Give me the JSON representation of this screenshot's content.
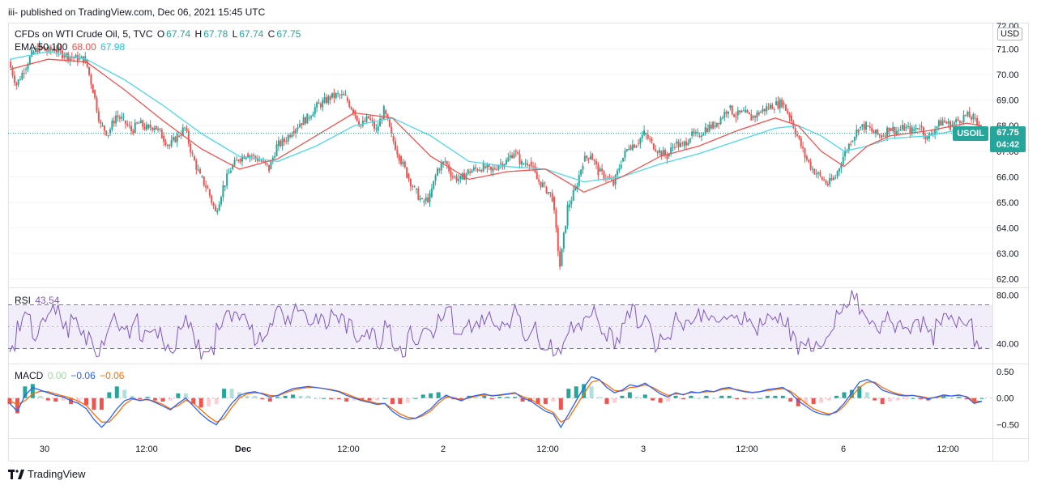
{
  "header": {
    "published": "iii- published on TradingView.com, Dec 06, 2021 15:45 UTC"
  },
  "legend": {
    "symbol": "CFDs on WTI Crude Oil, 5, TVC",
    "o_label": "O",
    "o_value": "67.74",
    "h_label": "H",
    "h_value": "67.78",
    "l_label": "L",
    "l_value": "67.74",
    "c_label": "C",
    "c_value": "67.75",
    "ema_label": "EMA 50 100",
    "ema_fast": "68.00",
    "ema_slow": "67.98",
    "rsi_label": "RSI",
    "rsi_value": "43.54",
    "macd_label": "MACD",
    "macd_hist": "0.00",
    "macd_line": "−0.06",
    "macd_signal": "−0.06"
  },
  "price_scale": {
    "currency": "USD",
    "ticks": [
      "71.00",
      "70.00",
      "69.00",
      "68.00",
      "67.00",
      "66.00",
      "65.00",
      "64.00",
      "63.00",
      "62.00"
    ],
    "top_partial": "72.00"
  },
  "rsi_scale": {
    "ticks": [
      "80.00",
      "40.00"
    ]
  },
  "macd_scale": {
    "ticks": [
      "0.50",
      "0.00",
      "−0.50"
    ]
  },
  "time_axis": {
    "labels": [
      "30",
      "12:00",
      "Dec",
      "12:00",
      "2",
      "12:00",
      "3",
      "12:00",
      "6",
      "12:00"
    ]
  },
  "last_price": {
    "symbol": "USOIL",
    "value": "67.75",
    "countdown": "04:42"
  },
  "footer": {
    "brand": "TradingView"
  },
  "colors": {
    "up": "#26a69a",
    "down": "#ef5350",
    "ema_fast": "#ef5350",
    "ema_slow": "#4dd8e8",
    "rsi": "#7e57c2",
    "macd": "#2962ff",
    "signal": "#ff6d00"
  },
  "chart_data": [
    {
      "type": "candlestick",
      "title": "CFDs on WTI Crude Oil, 5, TVC",
      "ylim": [
        61.7,
        72.0
      ],
      "x_labels": [
        "30",
        "12:00",
        "Dec",
        "12:00",
        "2",
        "12:00",
        "3",
        "12:00",
        "6",
        "12:00"
      ],
      "close_path": [
        [
          0,
          70.5
        ],
        [
          1,
          69.6
        ],
        [
          2,
          70.2
        ],
        [
          3,
          70.8
        ],
        [
          4,
          71.1
        ],
        [
          5,
          70.9
        ],
        [
          6,
          71.0
        ],
        [
          7,
          70.8
        ],
        [
          8,
          70.7
        ],
        [
          9,
          70.6
        ],
        [
          10,
          70.6
        ],
        [
          11,
          69.4
        ],
        [
          12,
          68.0
        ],
        [
          13,
          67.7
        ],
        [
          14,
          68.4
        ],
        [
          15,
          68.2
        ],
        [
          16,
          67.8
        ],
        [
          17,
          68.1
        ],
        [
          18,
          67.9
        ],
        [
          19,
          68.0
        ],
        [
          20,
          67.6
        ],
        [
          21,
          67.2
        ],
        [
          22,
          67.6
        ],
        [
          23,
          67.9
        ],
        [
          24,
          66.8
        ],
        [
          25,
          66.0
        ],
        [
          26,
          65.5
        ],
        [
          27,
          64.6
        ],
        [
          28,
          65.6
        ],
        [
          29,
          66.3
        ],
        [
          30,
          66.7
        ],
        [
          31,
          66.9
        ],
        [
          32,
          66.8
        ],
        [
          33,
          66.6
        ],
        [
          34,
          66.3
        ],
        [
          35,
          67.2
        ],
        [
          36,
          67.4
        ],
        [
          37,
          67.8
        ],
        [
          38,
          68.1
        ],
        [
          39,
          68.3
        ],
        [
          40,
          68.7
        ],
        [
          41,
          68.9
        ],
        [
          42,
          69.1
        ],
        [
          43,
          69.2
        ],
        [
          44,
          69.1
        ],
        [
          45,
          68.6
        ],
        [
          46,
          68.0
        ],
        [
          47,
          68.3
        ],
        [
          48,
          67.8
        ],
        [
          49,
          68.6
        ],
        [
          50,
          67.6
        ],
        [
          51,
          66.8
        ],
        [
          52,
          66.1
        ],
        [
          53,
          65.5
        ],
        [
          54,
          65.0
        ],
        [
          55,
          65.2
        ],
        [
          56,
          66.3
        ],
        [
          57,
          66.6
        ],
        [
          58,
          66.0
        ],
        [
          59,
          65.9
        ],
        [
          60,
          66.2
        ],
        [
          61,
          66.3
        ],
        [
          62,
          66.4
        ],
        [
          63,
          66.2
        ],
        [
          64,
          66.5
        ],
        [
          65,
          66.6
        ],
        [
          66,
          67.0
        ],
        [
          67,
          66.5
        ],
        [
          68,
          66.6
        ],
        [
          69,
          65.9
        ],
        [
          70,
          65.6
        ],
        [
          71,
          65.2
        ],
        [
          72,
          62.5
        ],
        [
          73,
          64.8
        ],
        [
          74,
          65.5
        ],
        [
          75,
          66.6
        ],
        [
          76,
          66.9
        ],
        [
          77,
          66.2
        ],
        [
          78,
          66.0
        ],
        [
          79,
          65.7
        ],
        [
          80,
          66.6
        ],
        [
          81,
          67.2
        ],
        [
          82,
          67.3
        ],
        [
          83,
          67.7
        ],
        [
          84,
          67.3
        ],
        [
          85,
          67.0
        ],
        [
          86,
          66.8
        ],
        [
          87,
          67.3
        ],
        [
          88,
          67.2
        ],
        [
          89,
          67.6
        ],
        [
          90,
          67.6
        ],
        [
          91,
          67.9
        ],
        [
          92,
          68.0
        ],
        [
          93,
          68.3
        ],
        [
          94,
          68.7
        ],
        [
          95,
          68.4
        ],
        [
          96,
          68.5
        ],
        [
          97,
          68.3
        ],
        [
          98,
          68.5
        ],
        [
          99,
          68.7
        ],
        [
          100,
          68.8
        ],
        [
          101,
          68.9
        ],
        [
          102,
          68.4
        ],
        [
          103,
          67.6
        ],
        [
          104,
          66.8
        ],
        [
          105,
          66.3
        ],
        [
          106,
          66.0
        ],
        [
          107,
          65.7
        ],
        [
          108,
          66.0
        ],
        [
          109,
          66.8
        ],
        [
          110,
          67.4
        ],
        [
          111,
          67.9
        ],
        [
          112,
          68.0
        ],
        [
          113,
          67.7
        ],
        [
          114,
          67.6
        ],
        [
          115,
          67.9
        ],
        [
          116,
          67.8
        ],
        [
          117,
          67.9
        ],
        [
          118,
          67.8
        ],
        [
          119,
          68.0
        ],
        [
          120,
          67.5
        ],
        [
          121,
          67.9
        ],
        [
          122,
          68.2
        ],
        [
          123,
          68.0
        ],
        [
          124,
          68.2
        ],
        [
          125,
          68.4
        ],
        [
          126,
          68.3
        ],
        [
          127,
          67.75
        ]
      ],
      "ema_fast": [
        [
          0,
          70.2
        ],
        [
          5,
          70.6
        ],
        [
          10,
          70.5
        ],
        [
          15,
          69.4
        ],
        [
          20,
          68.2
        ],
        [
          25,
          67.1
        ],
        [
          30,
          66.3
        ],
        [
          35,
          66.7
        ],
        [
          40,
          67.6
        ],
        [
          45,
          68.5
        ],
        [
          50,
          68.3
        ],
        [
          55,
          66.8
        ],
        [
          60,
          65.9
        ],
        [
          65,
          66.2
        ],
        [
          70,
          66.3
        ],
        [
          75,
          65.4
        ],
        [
          80,
          66.0
        ],
        [
          85,
          66.8
        ],
        [
          90,
          67.2
        ],
        [
          95,
          67.8
        ],
        [
          100,
          68.3
        ],
        [
          103,
          68.0
        ],
        [
          106,
          67.0
        ],
        [
          109,
          66.4
        ],
        [
          112,
          67.2
        ],
        [
          115,
          67.6
        ],
        [
          120,
          67.8
        ],
        [
          125,
          68.1
        ],
        [
          127,
          68.0
        ]
      ],
      "ema_slow": [
        [
          0,
          70.6
        ],
        [
          5,
          70.9
        ],
        [
          10,
          70.6
        ],
        [
          15,
          69.8
        ],
        [
          20,
          68.8
        ],
        [
          25,
          67.7
        ],
        [
          30,
          66.8
        ],
        [
          35,
          66.6
        ],
        [
          40,
          67.2
        ],
        [
          45,
          68.0
        ],
        [
          50,
          68.3
        ],
        [
          55,
          67.6
        ],
        [
          60,
          66.6
        ],
        [
          65,
          66.4
        ],
        [
          70,
          66.3
        ],
        [
          75,
          65.8
        ],
        [
          80,
          66.0
        ],
        [
          85,
          66.5
        ],
        [
          90,
          66.9
        ],
        [
          95,
          67.4
        ],
        [
          100,
          67.9
        ],
        [
          103,
          68.0
        ],
        [
          106,
          67.6
        ],
        [
          109,
          67.0
        ],
        [
          112,
          67.2
        ],
        [
          115,
          67.5
        ],
        [
          120,
          67.6
        ],
        [
          125,
          67.9
        ],
        [
          127,
          67.98
        ]
      ]
    },
    {
      "type": "line",
      "title": "RSI",
      "ylim": [
        25,
        85
      ],
      "bands": [
        72,
        36
      ],
      "values": [
        35,
        55,
        60,
        48,
        62,
        70,
        66,
        52,
        58,
        47,
        44,
        32,
        45,
        58,
        52,
        50,
        62,
        45,
        55,
        48,
        40,
        38,
        50,
        58,
        42,
        30,
        35,
        55,
        62,
        60,
        58,
        56,
        45,
        48,
        62,
        68,
        60,
        72,
        66,
        58,
        62,
        55,
        65,
        60,
        54,
        45,
        52,
        48,
        42,
        60,
        38,
        35,
        48,
        42,
        52,
        50,
        60,
        66,
        44,
        50,
        56,
        58,
        62,
        55,
        58,
        60,
        66,
        48,
        52,
        42,
        40,
        35,
        38,
        52,
        58,
        62,
        68,
        50,
        48,
        42,
        60,
        66,
        58,
        62,
        40,
        45,
        50,
        62,
        58,
        60,
        64,
        66,
        55,
        62,
        58,
        60,
        65,
        52,
        58,
        60,
        62,
        60,
        45,
        35,
        40,
        38,
        42,
        46,
        62,
        72,
        80,
        64,
        58,
        52,
        60,
        55,
        58,
        50,
        62,
        56,
        45,
        54,
        60,
        58,
        62,
        60,
        42,
        43.54
      ]
    },
    {
      "type": "line",
      "title": "MACD",
      "ylim": [
        -0.72,
        0.62
      ],
      "macd": [
        -0.1,
        -0.25,
        0.05,
        0.2,
        0.15,
        0.1,
        0.05,
        0.02,
        -0.05,
        -0.1,
        -0.2,
        -0.4,
        -0.55,
        -0.4,
        -0.2,
        -0.05,
        0.0,
        -0.05,
        -0.02,
        -0.08,
        -0.15,
        -0.22,
        -0.1,
        0.0,
        -0.15,
        -0.3,
        -0.42,
        -0.5,
        -0.3,
        -0.1,
        0.05,
        0.1,
        0.12,
        0.08,
        0.02,
        0.05,
        0.12,
        0.18,
        0.2,
        0.22,
        0.2,
        0.18,
        0.15,
        0.12,
        0.05,
        0.0,
        -0.05,
        -0.08,
        -0.12,
        -0.1,
        -0.25,
        -0.35,
        -0.4,
        -0.38,
        -0.3,
        -0.2,
        -0.05,
        0.05,
        0.0,
        -0.05,
        0.02,
        0.05,
        0.08,
        0.04,
        0.06,
        0.08,
        0.1,
        0.0,
        -0.05,
        -0.15,
        -0.25,
        -0.3,
        -0.55,
        -0.3,
        -0.05,
        0.2,
        0.4,
        0.35,
        0.2,
        0.1,
        0.15,
        0.25,
        0.22,
        0.28,
        0.18,
        0.08,
        0.02,
        0.1,
        0.06,
        0.12,
        0.1,
        0.14,
        0.12,
        0.18,
        0.2,
        0.15,
        0.12,
        0.1,
        0.12,
        0.16,
        0.18,
        0.2,
        0.1,
        -0.05,
        -0.15,
        -0.25,
        -0.3,
        -0.32,
        -0.25,
        -0.1,
        0.1,
        0.3,
        0.35,
        0.28,
        0.15,
        0.1,
        0.06,
        0.04,
        0.05,
        0.02,
        -0.02,
        0.02,
        0.06,
        0.04,
        0.06,
        0.02,
        -0.1,
        -0.06
      ],
      "signal": [
        -0.05,
        -0.12,
        -0.05,
        0.08,
        0.13,
        0.12,
        0.08,
        0.04,
        0.0,
        -0.06,
        -0.14,
        -0.3,
        -0.45,
        -0.45,
        -0.3,
        -0.12,
        -0.02,
        -0.04,
        -0.03,
        -0.06,
        -0.12,
        -0.2,
        -0.14,
        -0.04,
        -0.1,
        -0.22,
        -0.35,
        -0.45,
        -0.38,
        -0.18,
        0.0,
        0.08,
        0.1,
        0.09,
        0.05,
        0.04,
        0.1,
        0.15,
        0.18,
        0.2,
        0.2,
        0.18,
        0.16,
        0.13,
        0.08,
        0.02,
        -0.03,
        -0.06,
        -0.1,
        -0.1,
        -0.2,
        -0.3,
        -0.36,
        -0.38,
        -0.33,
        -0.24,
        -0.1,
        0.02,
        0.01,
        -0.03,
        0.0,
        0.04,
        0.06,
        0.05,
        0.05,
        0.07,
        0.09,
        0.03,
        -0.02,
        -0.1,
        -0.2,
        -0.27,
        -0.45,
        -0.38,
        -0.15,
        0.08,
        0.3,
        0.34,
        0.25,
        0.14,
        0.13,
        0.2,
        0.21,
        0.25,
        0.2,
        0.12,
        0.05,
        0.08,
        0.07,
        0.1,
        0.1,
        0.12,
        0.12,
        0.16,
        0.18,
        0.16,
        0.13,
        0.11,
        0.12,
        0.14,
        0.16,
        0.18,
        0.13,
        0.02,
        -0.1,
        -0.2,
        -0.26,
        -0.3,
        -0.27,
        -0.15,
        0.03,
        0.2,
        0.3,
        0.3,
        0.2,
        0.13,
        0.08,
        0.05,
        0.05,
        0.03,
        0.0,
        0.01,
        0.04,
        0.04,
        0.05,
        0.03,
        -0.06,
        -0.06
      ]
    }
  ]
}
